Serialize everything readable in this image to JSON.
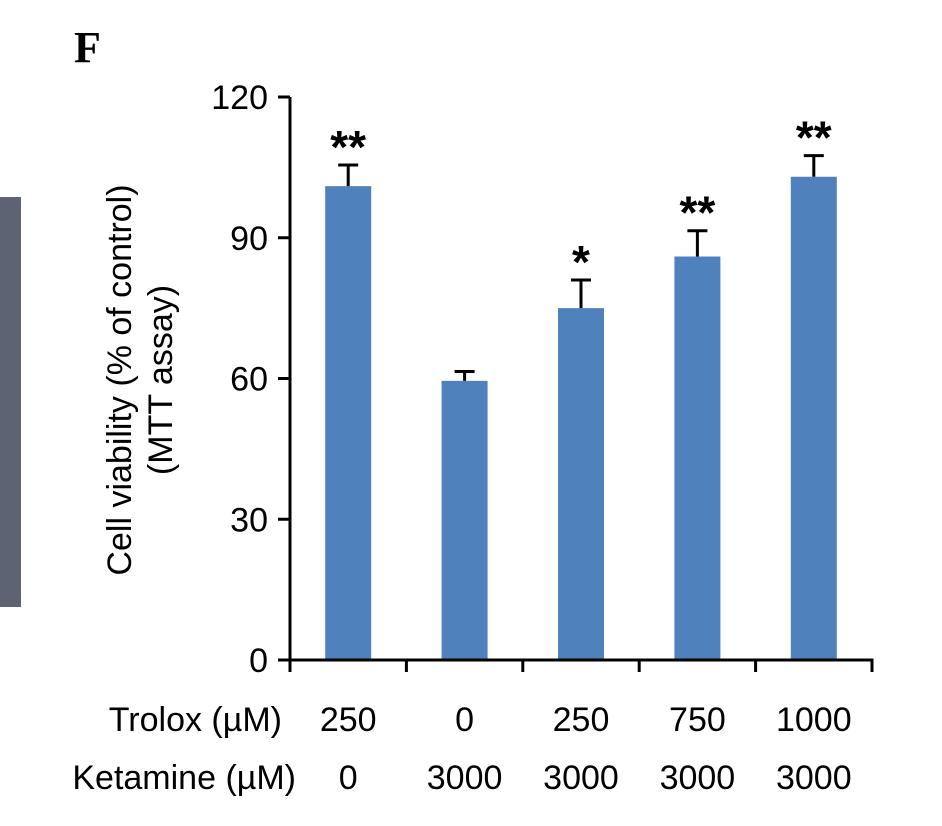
{
  "panel_label": "F",
  "colors": {
    "bar": "#4f81bd",
    "axis": "#000000",
    "micrograph": "#5e6373"
  },
  "chart_data": {
    "type": "bar",
    "title": "",
    "ylabel_lines": [
      "Cell viability (% of control)",
      "(MTT assay)"
    ],
    "xlabel": "",
    "ylim": [
      0,
      120
    ],
    "yticks": [
      0,
      30,
      60,
      90,
      120
    ],
    "grid": false,
    "legend": "none",
    "row_labels": [
      "Trolox (µM)",
      "Ketamine (µM)"
    ],
    "categories": [
      {
        "trolox": "250",
        "ketamine": "0"
      },
      {
        "trolox": "0",
        "ketamine": "3000"
      },
      {
        "trolox": "250",
        "ketamine": "3000"
      },
      {
        "trolox": "750",
        "ketamine": "3000"
      },
      {
        "trolox": "1000",
        "ketamine": "3000"
      }
    ],
    "values": [
      101,
      59.5,
      75,
      86,
      103
    ],
    "errors": [
      4.5,
      2,
      6,
      5.5,
      4.5
    ],
    "significance": [
      "**",
      "",
      "*",
      "**",
      "**"
    ]
  }
}
